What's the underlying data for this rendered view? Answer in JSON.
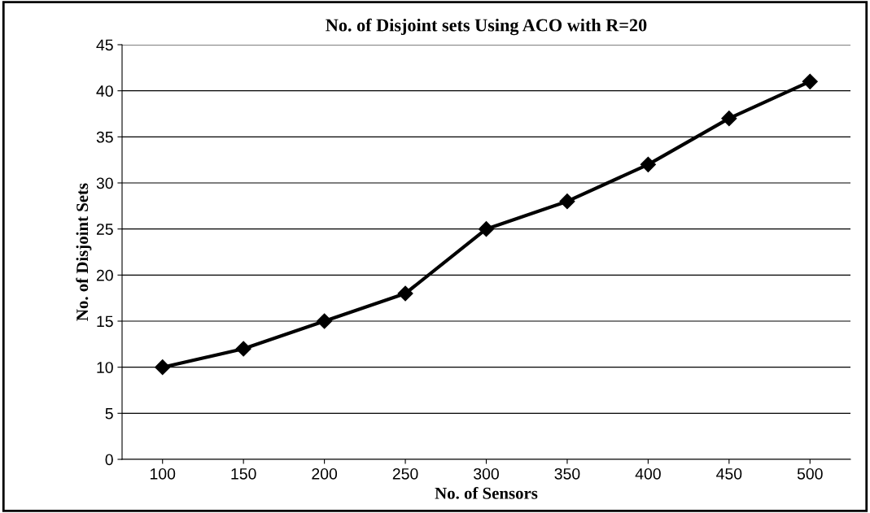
{
  "chart_data": {
    "type": "line",
    "title": "No. of Disjoint sets Using ACO with R=20",
    "xlabel": "No. of Sensors",
    "ylabel": "No. of Disjoint Sets",
    "categories": [
      "100",
      "150",
      "200",
      "250",
      "300",
      "350",
      "400",
      "450",
      "500"
    ],
    "series": [
      {
        "color": "#000000",
        "values": [
          10,
          12,
          15,
          18,
          25,
          28,
          32,
          37,
          41
        ]
      }
    ],
    "ylim": [
      0,
      45
    ],
    "yticks": [
      0,
      5,
      10,
      15,
      20,
      25,
      30,
      35,
      40,
      45
    ],
    "grid": "y",
    "marker": "diamond",
    "line_style": "solid"
  }
}
